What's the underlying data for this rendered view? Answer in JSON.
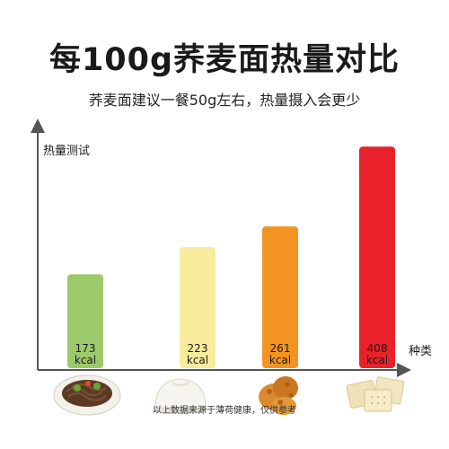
{
  "title": "每100g荞麦面热量对比",
  "subtitle": "荞麦面建议一餐50g左右，热量摄入会更少",
  "footnote": "以上数据来源于薄荷健康，仅供参考",
  "chart_data": {
    "type": "bar",
    "ylabel": "热量测试",
    "xlabel": "种类",
    "values": [
      173,
      223,
      261,
      408
    ],
    "unit": "kcal",
    "colors": [
      "#9cc96a",
      "#f7ec9c",
      "#f39422",
      "#e8212a"
    ],
    "ylim": [
      0,
      430
    ],
    "food_icons": [
      "buckwheat-noodles-icon",
      "steamed-bun-icon",
      "fried-chicken-icon",
      "crackers-icon"
    ]
  }
}
